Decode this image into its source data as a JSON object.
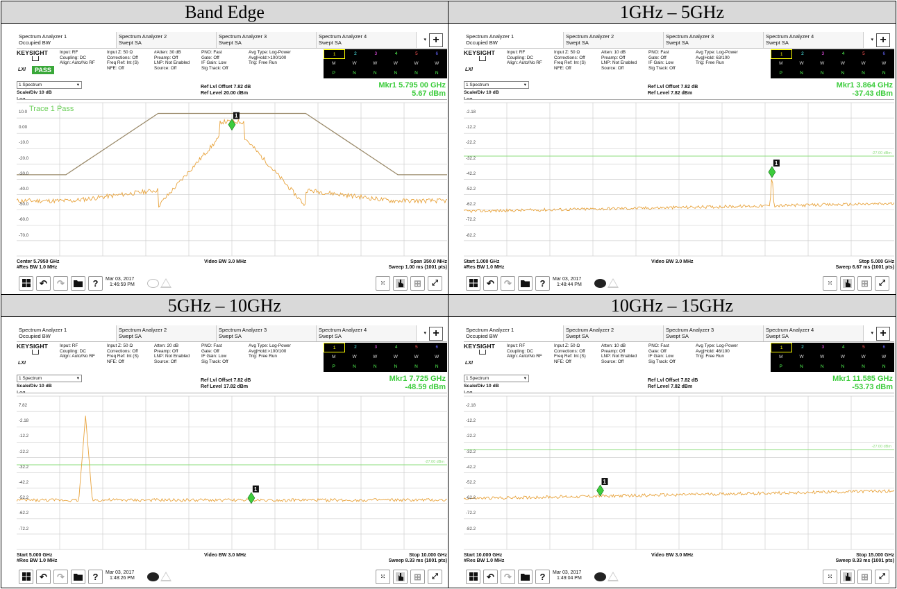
{
  "panels": [
    {
      "title": "Band Edge",
      "tabs": [
        [
          "Spectrum Analyzer 1",
          "Occupied BW"
        ],
        [
          "Spectrum Analyzer 2",
          "Swept SA"
        ],
        [
          "Spectrum Analyzer 3",
          "Swept SA"
        ],
        [
          "Spectrum Analyzer 4",
          "Swept SA"
        ]
      ],
      "pass": "PASS",
      "input_col": "Input: RF\nCoupling: DC\nAlign: Auto/No RF",
      "col2": "Input Z: 50 Ω\nCorrections: Off\nFreq Ref: Int (S)\nNFE: Off",
      "col3": "#Atten: 30 dB\nPreamp: Off\nLNP: Not Enabled\nSource: Off",
      "col4": "PNO: Fast\nGate: Off\nIF Gain: Low\nSig Track: Off",
      "col5": "Avg Type: Log-Power\nAvg|Hold:>100/100\nTrig: Free Run",
      "trace_row1": [
        "1",
        "2",
        "3",
        "4",
        "5",
        "6"
      ],
      "trace_row2": [
        "M",
        "W",
        "W",
        "W",
        "W",
        "W"
      ],
      "trace_row3": [
        "P",
        "N",
        "N",
        "N",
        "N",
        "N"
      ],
      "select": "1 Spectrum",
      "scale": "Scale/Div 10 dB",
      "log": "Log",
      "ref_offset": "Ref Lvl Offset 7.82 dB",
      "ref_level": "Ref Level 20.00 dBm",
      "mkr_freq": "Mkr1  5.795 00 GHz",
      "mkr_amp": "5.67 dBm",
      "yticks": [
        "10.0",
        "0.00",
        "-10.0",
        "-20.0",
        "-30.0",
        "-40.0",
        "-50.0",
        "-60.0",
        "-70.0"
      ],
      "trace_label": "Trace 1 Pass",
      "limit_text": "",
      "foot_left1": "Center 5.7950 GHz",
      "foot_left2": "#Res BW 1.0 MHz",
      "foot_mid": "Video BW 3.0 MHz",
      "foot_right1": "Span 350.0 MHz",
      "foot_right2": "Sweep 1.00 ms (1001 pts)",
      "date": "Mar 03, 2017",
      "time": "1:46:59 PM"
    },
    {
      "title": "1GHz – 5GHz",
      "tabs": [
        [
          "Spectrum Analyzer 1",
          "Occupied BW"
        ],
        [
          "Spectrum Analyzer 2",
          "Swept SA"
        ],
        [
          "Spectrum Analyzer 3",
          "Swept SA"
        ],
        [
          "Spectrum Analyzer 4",
          "Swept SA"
        ]
      ],
      "pass": "",
      "input_col": "Input: RF\nCoupling: DC\nAlign: Auto/No RF",
      "col2": "Input Z: 50 Ω\nCorrections: Off\nFreq Ref: Int (S)\nNFE: Off",
      "col3": "Atten: 10 dB\nPreamp: Off\nLNP: Not Enabled\nSource: Off",
      "col4": "PNO: Fast\nGate: Off\nIF Gain: Low\nSig Track: Off",
      "col5": "Avg Type: Log-Power\nAvg|Hold: 63/100\nTrig: Free Run",
      "trace_row1": [
        "1",
        "2",
        "3",
        "4",
        "5",
        "6"
      ],
      "trace_row2": [
        "M",
        "W",
        "W",
        "W",
        "W",
        "W"
      ],
      "trace_row3": [
        "P",
        "N",
        "N",
        "N",
        "N",
        "N"
      ],
      "select": "1 Spectrum",
      "scale": "Scale/Div 10 dB",
      "log": "Log",
      "ref_offset": "Ref Lvl Offset 7.82 dB",
      "ref_level": "Ref Level 7.82 dBm",
      "mkr_freq": "Mkr1  3.864 GHz",
      "mkr_amp": "-37.43 dBm",
      "yticks": [
        "-2.18",
        "-12.2",
        "-22.2",
        "-32.2",
        "-42.2",
        "-52.2",
        "-62.2",
        "-72.2",
        "-82.2"
      ],
      "trace_label": "",
      "limit_text": "-27.00 dBm",
      "foot_left1": "Start 1.000 GHz",
      "foot_left2": "#Res BW 1.0 MHz",
      "foot_mid": "Video BW 3.0 MHz",
      "foot_right1": "Stop 5.000 GHz",
      "foot_right2": "Sweep 6.67 ms (1001 pts)",
      "date": "Mar 03, 2017",
      "time": "1:48:44 PM"
    },
    {
      "title": "5GHz – 10GHz",
      "tabs": [
        [
          "Spectrum Analyzer 1",
          "Occupied BW"
        ],
        [
          "Spectrum Analyzer 2",
          "Swept SA"
        ],
        [
          "Spectrum Analyzer 3",
          "Swept SA"
        ],
        [
          "Spectrum Analyzer 4",
          "Swept SA"
        ]
      ],
      "pass": "",
      "input_col": "Input: RF\nCoupling: DC\nAlign: Auto/No RF",
      "col2": "Input Z: 50 Ω\nCorrections: Off\nFreq Ref: Int (S)\nNFE: Off",
      "col3": "Atten: 20 dB\nPreamp: Off\nLNP: Not Enabled\nSource: Off",
      "col4": "PNO: Fast\nGate: Off\nIF Gain: Low\nSig Track: Off",
      "col5": "Avg Type: Log-Power\nAvg|Hold:>100/100\nTrig: Free Run",
      "trace_row1": [
        "1",
        "2",
        "3",
        "4",
        "5",
        "6"
      ],
      "trace_row2": [
        "M",
        "W",
        "W",
        "W",
        "W",
        "W"
      ],
      "trace_row3": [
        "P",
        "N",
        "N",
        "N",
        "N",
        "N"
      ],
      "select": "1 Spectrum",
      "scale": "Scale/Div 10 dB",
      "log": "Log",
      "ref_offset": "Ref Lvl Offset 7.82 dB",
      "ref_level": "Ref Level 17.82 dBm",
      "mkr_freq": "Mkr1  7.725 GHz",
      "mkr_amp": "-48.59 dBm",
      "yticks": [
        "7.82",
        "-2.18",
        "-12.2",
        "-22.2",
        "-32.2",
        "-42.2",
        "-52.2",
        "-62.2",
        "-72.2"
      ],
      "trace_label": "",
      "limit_text": "-27.00 dBm",
      "foot_left1": "Start 5.000 GHz",
      "foot_left2": "#Res BW 1.0 MHz",
      "foot_mid": "Video BW 3.0 MHz",
      "foot_right1": "Stop 10.000 GHz",
      "foot_right2": "Sweep 8.33 ms (1001 pts)",
      "date": "Mar 03, 2017",
      "time": "1:48:26 PM"
    },
    {
      "title": "10GHz – 15GHz",
      "tabs": [
        [
          "Spectrum Analyzer 1",
          "Occupied BW"
        ],
        [
          "Spectrum Analyzer 2",
          "Swept SA"
        ],
        [
          "Spectrum Analyzer 3",
          "Swept SA"
        ],
        [
          "Spectrum Analyzer 4",
          "Swept SA"
        ]
      ],
      "pass": "",
      "input_col": "Input: RF\nCoupling: DC\nAlign: Auto/No RF",
      "col2": "Input Z: 50 Ω\nCorrections: Off\nFreq Ref: Int (S)\nNFE: Off",
      "col3": "Atten: 10 dB\nPreamp: Off\nLNP: Not Enabled\nSource: Off",
      "col4": "PNO: Fast\nGate: Off\nIF Gain: Low\nSig Track: Off",
      "col5": "Avg Type: Log-Power\nAvg|Hold: 46/100\nTrig: Free Run",
      "trace_row1": [
        "1",
        "2",
        "3",
        "4",
        "5",
        "6"
      ],
      "trace_row2": [
        "M",
        "W",
        "W",
        "W",
        "W",
        "W"
      ],
      "trace_row3": [
        "P",
        "N",
        "N",
        "N",
        "N",
        "N"
      ],
      "select": "1 Spectrum",
      "scale": "Scale/Div 10 dB",
      "log": "Log",
      "ref_offset": "Ref Lvl Offset 7.82 dB",
      "ref_level": "Ref Level 7.82 dBm",
      "mkr_freq": "Mkr1  11.585 GHz",
      "mkr_amp": "-53.73 dBm",
      "yticks": [
        "-2.18",
        "-12.2",
        "-22.2",
        "-32.2",
        "-42.2",
        "-52.2",
        "-62.2",
        "-72.2",
        "-82.2"
      ],
      "trace_label": "",
      "limit_text": "-27.00 dBm",
      "foot_left1": "Start 10.000 GHz",
      "foot_left2": "#Res BW 1.0 MHz",
      "foot_mid": "Video BW 3.0 MHz",
      "foot_right1": "Stop 15.000 GHz",
      "foot_right2": "Sweep 8.33 ms (1001 pts)",
      "date": "Mar 03, 2017",
      "time": "1:49:04 PM"
    }
  ],
  "brand": "KEYSIGHT",
  "lxi": "LXI",
  "plus_label": "+",
  "help_label": "?",
  "colors": {
    "trace": "#e8a33c",
    "limit": "#8bdc7b",
    "marker": "#3ccc3c",
    "mask": "#9a8a6a",
    "grid": "#cfcfcf"
  },
  "icons": [
    "windows-icon",
    "undo-icon",
    "redo-icon",
    "folder-icon",
    "help-icon",
    "chat-icon",
    "alert-icon",
    "markers-icon",
    "touch-icon",
    "layout-icon",
    "fullscreen-icon"
  ],
  "traces": [
    {
      "kind": "bandedge",
      "ref": 20,
      "center_ghz": 5.795,
      "span_mhz": 350,
      "marker_x_ghz": 5.795,
      "marker_y": 5.67
    },
    {
      "kind": "spur",
      "ref": 7.82,
      "start_ghz": 1,
      "stop_ghz": 5,
      "floor": -63,
      "marker_x_ghz": 3.864,
      "marker_y": -37.43,
      "limit_y": -27
    },
    {
      "kind": "carrier",
      "ref": 17.82,
      "start_ghz": 5,
      "stop_ghz": 10,
      "floor": -50,
      "carrier_x_ghz": 5.8,
      "carrier_peak": 5,
      "marker_x_ghz": 7.725,
      "marker_y": -48.59,
      "limit_y": -27
    },
    {
      "kind": "spur",
      "ref": 7.82,
      "start_ghz": 10,
      "stop_ghz": 15,
      "floor": -59,
      "marker_x_ghz": 11.585,
      "marker_y": -53.73,
      "limit_y": -27
    }
  ]
}
